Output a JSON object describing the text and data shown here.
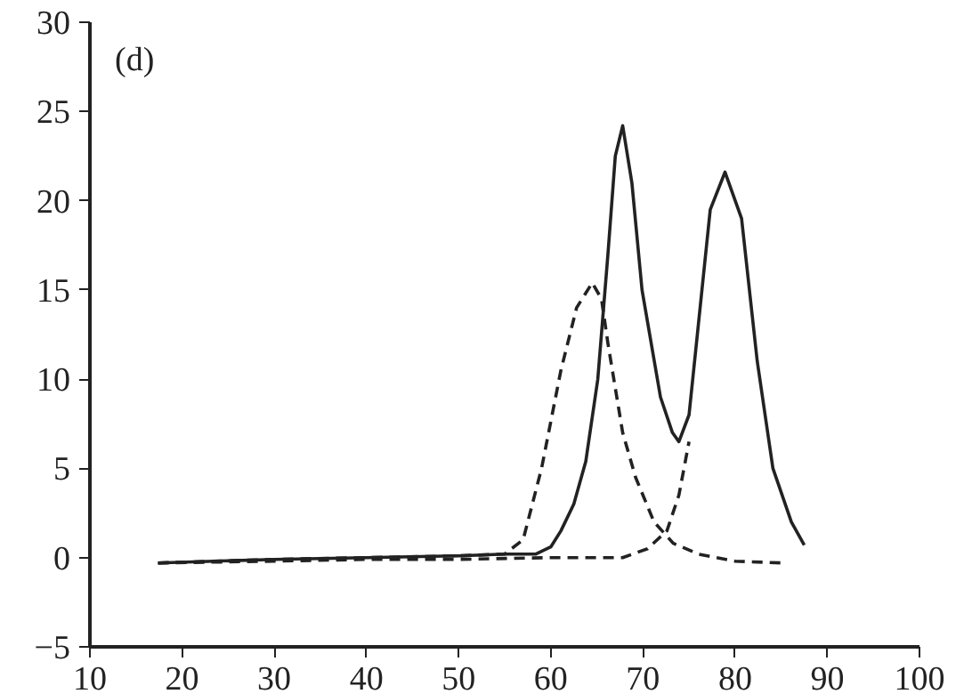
{
  "chart_data": {
    "type": "line",
    "annotations": [
      "(d)"
    ],
    "xlim": [
      10,
      100
    ],
    "ylim": [
      -5,
      30
    ],
    "xticks": [
      10,
      20,
      30,
      40,
      50,
      60,
      70,
      80,
      90,
      100
    ],
    "yticks": [
      -5,
      0,
      5,
      10,
      15,
      20,
      25,
      30
    ],
    "grid": false,
    "marker": "none",
    "series": [
      {
        "color": "#222222",
        "line_style": "solid",
        "x": [
          17.4,
          30,
          40,
          50,
          55,
          58.4,
          60,
          61.1,
          62.5,
          63.8,
          65.1,
          66.2,
          67,
          67.8,
          68.8,
          69.9,
          71.9,
          73.2,
          73.9,
          75,
          76,
          77.3,
          78.9,
          80.7,
          82.4,
          84.1,
          86.1,
          87.5
        ],
        "values": [
          -0.3,
          -0.1,
          0,
          0.1,
          0.2,
          0.2,
          0.6,
          1.5,
          3,
          5.4,
          10,
          17,
          22.5,
          24.2,
          21,
          15,
          9,
          7,
          6.5,
          8,
          13,
          19.5,
          21.6,
          19,
          11,
          5,
          2,
          0.7
        ]
      },
      {
        "color": "#222222",
        "line_style": "dashed",
        "x": [
          17.4,
          30,
          40,
          50,
          55,
          57,
          59,
          61.1,
          62.8,
          64.5,
          65.5,
          66.2,
          67.8,
          69.2,
          71.2,
          73.3,
          76,
          80,
          85.1
        ],
        "values": [
          -0.3,
          -0.1,
          0,
          0.1,
          0.2,
          1,
          5,
          10.5,
          14,
          15.4,
          14.5,
          12,
          7,
          4.5,
          2,
          0.8,
          0.2,
          -0.2,
          -0.3
        ]
      },
      {
        "color": "#222222",
        "line_style": "dashed",
        "x": [
          17.4,
          30,
          40,
          50,
          60,
          67.8,
          70.5,
          72.6,
          73.9,
          75
        ],
        "values": [
          -0.3,
          -0.2,
          -0.1,
          -0.1,
          0,
          0,
          0.5,
          1.5,
          3.5,
          6.5
        ]
      }
    ]
  }
}
